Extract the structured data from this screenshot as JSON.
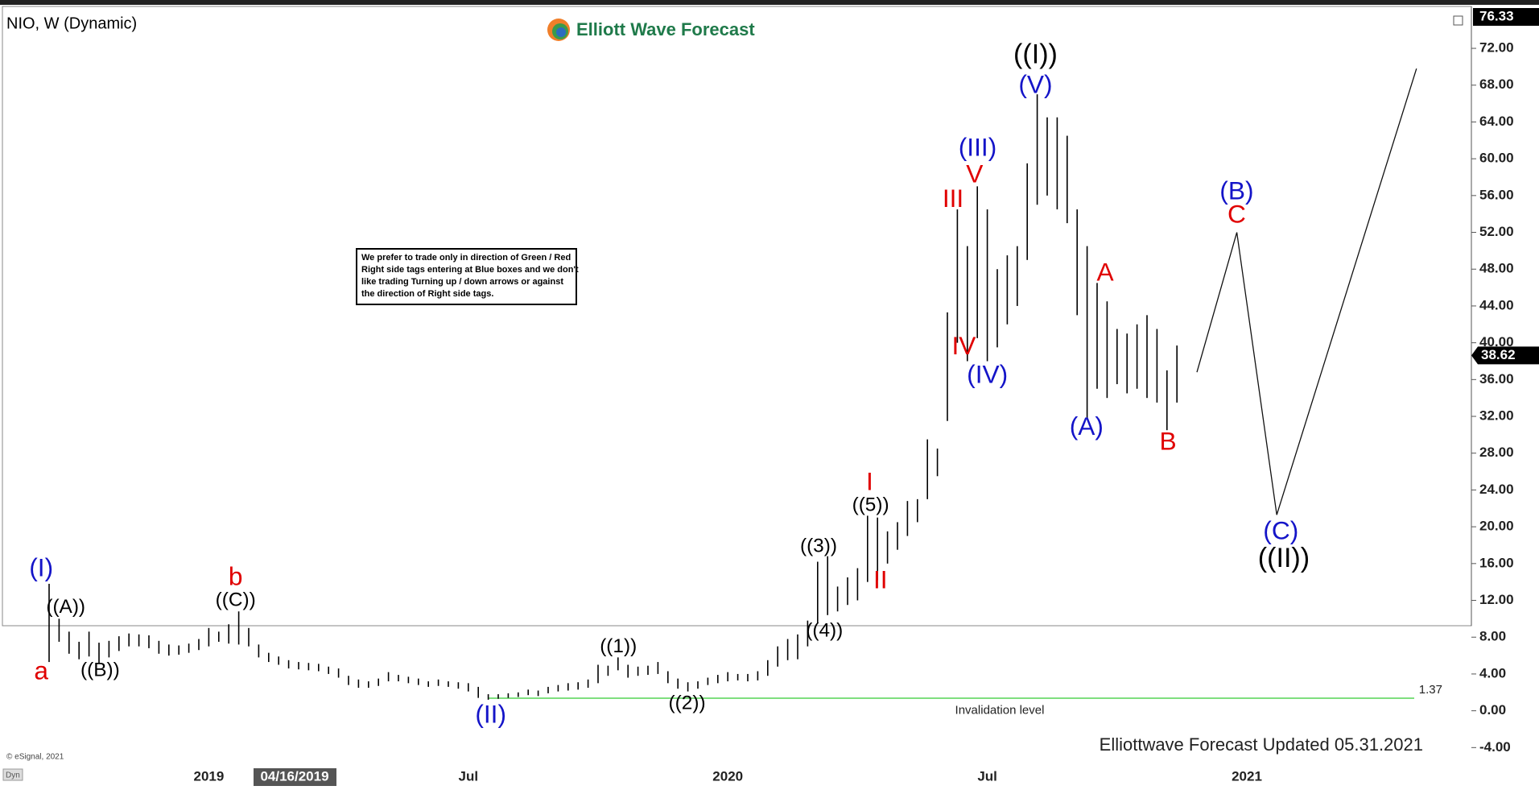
{
  "chart_data": {
    "type": "hl-bars",
    "title": "NIO, W (Dynamic)",
    "logo": "Elliott Wave Forecast",
    "note": [
      "We prefer to trade only in direction of Green / Red",
      "Right side tags entering at Blue boxes and we don't",
      "like trading Turning up / down arrows or against",
      "the direction of Right side tags."
    ],
    "footer": "Elliottwave Forecast Updated 05.31.2021",
    "copyright": "© eSignal, 2021",
    "corner_label": "Dyn",
    "cursor_date": "04/16/2019",
    "top_price": 76.33,
    "last_price": 38.62,
    "color": "#000000",
    "categories": [
      null,
      null,
      null,
      null,
      null,
      null,
      null,
      null,
      null,
      null,
      null,
      null,
      null,
      null,
      null,
      null,
      "2019",
      null,
      null,
      null,
      null,
      null,
      null,
      null,
      null,
      null,
      null,
      null,
      null,
      null,
      null,
      null,
      null,
      null,
      null,
      null,
      null,
      null,
      null,
      null,
      null,
      null,
      "Jul",
      null,
      null,
      null,
      null,
      null,
      null,
      null,
      null,
      null,
      null,
      null,
      null,
      null,
      null,
      null,
      null,
      null,
      null,
      null,
      null,
      null,
      null,
      null,
      null,
      null,
      "2020",
      null,
      null,
      null,
      null,
      null,
      null,
      null,
      null,
      null,
      null,
      null,
      null,
      null,
      null,
      null,
      null,
      null,
      null,
      null,
      null,
      null,
      null,
      null,
      null,
      null,
      "Jul",
      null,
      null,
      null,
      null,
      null,
      null,
      null,
      null,
      null,
      null,
      null,
      null,
      null,
      null,
      null,
      null,
      null,
      null,
      null,
      null,
      null,
      null,
      null,
      null,
      null,
      "2021",
      null,
      null,
      null,
      null,
      null,
      null,
      null,
      null,
      null,
      null,
      null,
      null,
      null,
      null,
      null,
      null,
      null,
      null,
      null
    ],
    "low": [
      5.3,
      7.5,
      6.2,
      5.6,
      5.9,
      5.2,
      5.8,
      6.5,
      7.0,
      7.0,
      6.8,
      6.2,
      6.0,
      6.1,
      6.3,
      6.6,
      7.0,
      7.5,
      7.3,
      7.2,
      7.0,
      5.8,
      5.3,
      5.0,
      4.6,
      4.5,
      4.4,
      4.3,
      4.0,
      3.6,
      2.8,
      2.5,
      2.5,
      2.7,
      3.2,
      3.2,
      3.0,
      2.8,
      2.6,
      2.7,
      2.6,
      2.4,
      2.1,
      1.4,
      1.2,
      1.3,
      1.4,
      1.5,
      1.7,
      1.6,
      1.9,
      2.1,
      2.2,
      2.3,
      2.5,
      3.0,
      3.8,
      4.4,
      3.6,
      3.8,
      3.9,
      4.0,
      3.0,
      2.4,
      2.1,
      2.4,
      2.8,
      3.0,
      3.2,
      3.3,
      3.2,
      3.3,
      3.8,
      4.8,
      5.5,
      5.6,
      7.0,
      9.5,
      10.4,
      10.8,
      11.5,
      12.0,
      14.0,
      14.2,
      16.0,
      17.5,
      19.0,
      20.5,
      23.0,
      25.5,
      31.5,
      40.0,
      38.0,
      40.5,
      38.0,
      39.5,
      42.0,
      44.0,
      49.0,
      55.0,
      56.0,
      54.5,
      53.0,
      43.0,
      31.7,
      35.0,
      34.0,
      35.5,
      34.5,
      35.0,
      34.0,
      33.5,
      30.5,
      33.5,
      null,
      null,
      null,
      null,
      null,
      null,
      null,
      null,
      null,
      null,
      null,
      null,
      null,
      null,
      null,
      null,
      null,
      null,
      null,
      null,
      null,
      null,
      null,
      null,
      null,
      null
    ],
    "high": [
      13.8,
      10.0,
      8.6,
      7.5,
      8.6,
      7.4,
      7.6,
      8.1,
      8.4,
      8.3,
      8.2,
      7.6,
      7.2,
      7.1,
      7.3,
      7.8,
      9.0,
      8.6,
      9.4,
      10.8,
      9.0,
      7.2,
      6.3,
      5.9,
      5.5,
      5.3,
      5.2,
      5.1,
      4.8,
      4.6,
      3.8,
      3.4,
      3.2,
      3.5,
      4.2,
      3.9,
      3.7,
      3.5,
      3.2,
      3.4,
      3.2,
      3.1,
      3.0,
      2.6,
      1.8,
      1.8,
      1.9,
      2.0,
      2.3,
      2.2,
      2.6,
      2.8,
      3.0,
      3.1,
      3.4,
      5.0,
      4.9,
      5.8,
      5.0,
      4.8,
      4.9,
      5.3,
      4.3,
      3.5,
      3.1,
      3.2,
      3.6,
      3.9,
      4.2,
      4.0,
      4.0,
      4.3,
      5.5,
      7.0,
      7.8,
      8.3,
      9.8,
      16.2,
      16.8,
      13.5,
      14.5,
      15.5,
      21.2,
      21.0,
      19.5,
      20.5,
      22.8,
      23.0,
      29.5,
      28.5,
      43.3,
      54.5,
      50.5,
      57.0,
      54.5,
      48.0,
      49.5,
      50.5,
      59.5,
      67.0,
      64.5,
      64.5,
      62.5,
      54.5,
      50.5,
      46.5,
      44.5,
      41.5,
      41.0,
      42.0,
      43.0,
      41.5,
      37.0,
      39.7,
      null,
      null,
      null,
      null,
      null,
      null,
      null,
      null,
      null,
      null,
      null,
      null,
      null,
      null,
      null,
      null,
      null,
      null,
      null,
      null,
      null,
      null,
      null,
      null,
      null,
      null
    ],
    "projection": {
      "x": [
        115,
        119,
        123,
        137
      ],
      "values": [
        36.8,
        52.0,
        21.3,
        69.8
      ]
    },
    "invalidation": {
      "label": "Invalidation level",
      "value": 1.37,
      "color": "#33cc33"
    },
    "ylim": [
      -5.46,
      76.38
    ],
    "yticks": [
      {
        "value": -4,
        "label": "-4.00"
      },
      {
        "value": 0,
        "label": "0.00"
      },
      {
        "value": 4,
        "label": "4.00"
      },
      {
        "value": 8,
        "label": "8.00"
      },
      {
        "value": 12,
        "label": "12.00"
      },
      {
        "value": 16,
        "label": "16.00"
      },
      {
        "value": 20,
        "label": "20.00"
      },
      {
        "value": 24,
        "label": "24.00"
      },
      {
        "value": 28,
        "label": "28.00"
      },
      {
        "value": 32,
        "label": "32.00"
      },
      {
        "value": 36,
        "label": "36.00"
      },
      {
        "value": 40,
        "label": "40.00"
      },
      {
        "value": 44,
        "label": "44.00"
      },
      {
        "value": 48,
        "label": "48.00"
      },
      {
        "value": 52,
        "label": "52.00"
      },
      {
        "value": 56,
        "label": "56.00"
      },
      {
        "value": 60,
        "label": "60.00"
      },
      {
        "value": 64,
        "label": "64.00"
      },
      {
        "value": 68,
        "label": "68.00"
      },
      {
        "value": 72,
        "label": "72.00"
      }
    ],
    "annotations": [
      {
        "text": "(I)",
        "color": "#1414c8"
      },
      {
        "text": "((A))",
        "color": "#000000"
      },
      {
        "text": "a",
        "color": "#e00000"
      },
      {
        "text": "((B))",
        "color": "#000000"
      },
      {
        "text": "b",
        "color": "#e00000"
      },
      {
        "text": "((C))",
        "color": "#000000"
      },
      {
        "text": "(II)",
        "color": "#1414c8"
      },
      {
        "text": "((1))",
        "color": "#000000"
      },
      {
        "text": "((2))",
        "color": "#000000"
      },
      {
        "text": "((3))",
        "color": "#000000"
      },
      {
        "text": "((4))",
        "color": "#000000"
      },
      {
        "text": "I",
        "color": "#e00000"
      },
      {
        "text": "((5))",
        "color": "#000000"
      },
      {
        "text": "II",
        "color": "#e00000"
      },
      {
        "text": "III",
        "color": "#e00000"
      },
      {
        "text": "IV",
        "color": "#e00000"
      },
      {
        "text": "(III)",
        "color": "#1414c8"
      },
      {
        "text": "V",
        "color": "#e00000"
      },
      {
        "text": "(IV)",
        "color": "#1414c8"
      },
      {
        "text": "((I))",
        "color": "#000000"
      },
      {
        "text": "(V)",
        "color": "#1414c8"
      },
      {
        "text": "A",
        "color": "#e00000"
      },
      {
        "text": "(A)",
        "color": "#1414c8"
      },
      {
        "text": "B",
        "color": "#e00000"
      },
      {
        "text": "(B)",
        "color": "#1414c8"
      },
      {
        "text": "C",
        "color": "#e00000"
      },
      {
        "text": "(C)",
        "color": "#1414c8"
      },
      {
        "text": "((II))",
        "color": "#000000"
      }
    ]
  }
}
